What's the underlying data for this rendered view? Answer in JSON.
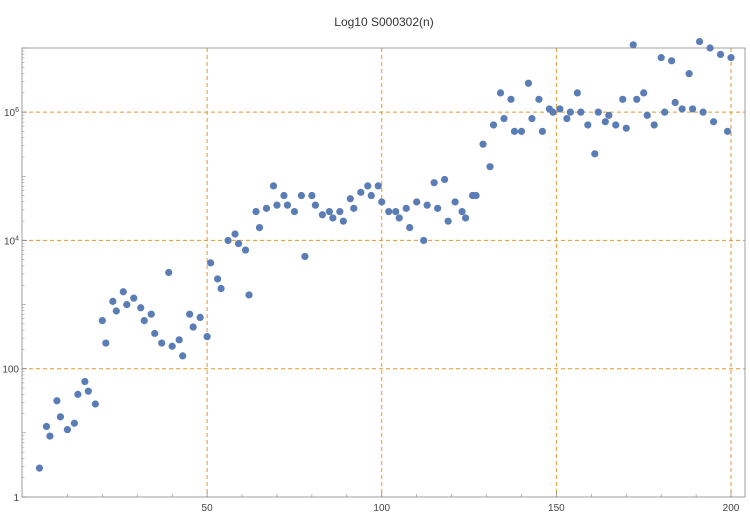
{
  "chart_data": {
    "type": "scatter",
    "title": "Log10 S000302(n)",
    "xlabel": "",
    "ylabel": "",
    "xlim": [
      -3,
      204
    ],
    "ylim": [
      0,
      7.0
    ],
    "y_scale": "log10",
    "grid": true,
    "legend": "none",
    "x_ticks": [
      {
        "value": 50,
        "label": "50"
      },
      {
        "value": 100,
        "label": "100"
      },
      {
        "value": 150,
        "label": "150"
      },
      {
        "value": 200,
        "label": "200"
      }
    ],
    "y_ticks": [
      {
        "exp": 0,
        "label": "1",
        "base": "",
        "sup": ""
      },
      {
        "exp": 2,
        "label": "100",
        "base": "",
        "sup": ""
      },
      {
        "exp": 4,
        "label": "",
        "base": "10",
        "sup": "4"
      },
      {
        "exp": 6,
        "label": "",
        "base": "10",
        "sup": "6"
      }
    ],
    "colors": {
      "points": "#5a7db5",
      "grid": "#e0982e",
      "axis": "#888888"
    },
    "series": [
      {
        "x": [
          2,
          4,
          5,
          7,
          8,
          10,
          12,
          13,
          15,
          16,
          18,
          20,
          21,
          23,
          24,
          26,
          27,
          29,
          31,
          32,
          34,
          35,
          37,
          39,
          40,
          42,
          43,
          45,
          46,
          48,
          50,
          51,
          53,
          54,
          56,
          58,
          59,
          61,
          62,
          64,
          65,
          67,
          69,
          70,
          72,
          73,
          75,
          77,
          78,
          80,
          81,
          83,
          85,
          86,
          88,
          89,
          91,
          92,
          94,
          96,
          97,
          99,
          100,
          102,
          104,
          105,
          107,
          108,
          110,
          112,
          113,
          115,
          116,
          118,
          119,
          121,
          123,
          124,
          126,
          127,
          129,
          131,
          132,
          134,
          135,
          137,
          138,
          140,
          142,
          143,
          145,
          146,
          148,
          149,
          151,
          153,
          154,
          156,
          157,
          159,
          161,
          162,
          164,
          165,
          167,
          169,
          170,
          172,
          173,
          175,
          176,
          178,
          180,
          181,
          183,
          184,
          186,
          188,
          189,
          191,
          192,
          194,
          195,
          197,
          199,
          200
        ],
        "y": [
          0.45,
          1.1,
          0.95,
          1.5,
          1.25,
          1.05,
          1.15,
          1.6,
          1.8,
          1.65,
          1.45,
          2.75,
          2.4,
          3.05,
          2.9,
          3.2,
          3.0,
          3.1,
          2.95,
          2.75,
          2.85,
          2.55,
          2.4,
          3.5,
          2.35,
          2.45,
          2.2,
          2.85,
          2.65,
          2.8,
          2.5,
          3.65,
          3.4,
          3.25,
          4.0,
          4.1,
          3.95,
          3.85,
          3.15,
          4.45,
          4.2,
          4.5,
          4.85,
          4.55,
          4.7,
          4.55,
          4.45,
          4.7,
          3.75,
          4.7,
          4.55,
          4.4,
          4.45,
          4.35,
          4.45,
          4.3,
          4.65,
          4.5,
          4.75,
          4.85,
          4.7,
          4.85,
          4.6,
          4.45,
          4.45,
          4.35,
          4.5,
          4.2,
          4.6,
          4.0,
          4.55,
          4.9,
          4.5,
          4.95,
          4.3,
          4.6,
          4.45,
          4.35,
          4.7,
          4.7,
          5.5,
          5.15,
          5.8,
          6.3,
          5.9,
          6.2,
          5.7,
          5.7,
          6.45,
          5.9,
          6.2,
          5.7,
          6.05,
          6.0,
          6.05,
          5.9,
          6.0,
          6.3,
          6.0,
          5.8,
          5.35,
          6.0,
          5.85,
          5.95,
          5.8,
          6.2,
          5.75,
          7.05,
          6.2,
          6.3,
          5.95,
          5.8,
          6.85,
          6.0,
          6.8,
          6.15,
          6.05,
          6.6,
          6.05,
          7.1,
          6.0,
          7.0,
          5.85,
          6.9,
          5.7,
          6.85
        ]
      }
    ]
  }
}
